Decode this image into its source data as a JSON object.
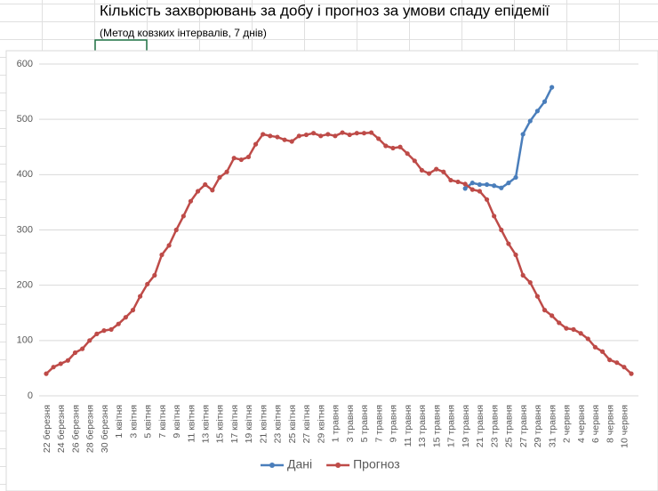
{
  "chart_data": {
    "type": "line",
    "title": "Кількість захворювань за добу і прогноз за умови спаду епідемії",
    "subtitle": "(Метод ковзких інтервалів, 7 днів)",
    "categories": [
      "22 березня",
      null,
      "24 березня",
      null,
      "26 березня",
      null,
      "28 березня",
      null,
      "30 березня",
      null,
      "1 квітня",
      null,
      "3 квітня",
      null,
      "5 квітня",
      null,
      "7 квітня",
      null,
      "9 квітня",
      null,
      "11 квітня",
      null,
      "13 квітня",
      null,
      "15 квітня",
      null,
      "17 квітня",
      null,
      "19 квітня",
      null,
      "21 квітня",
      null,
      "23 квітня",
      null,
      "25 квітня",
      null,
      "27 квітня",
      null,
      "29 квітня",
      null,
      "1 травня",
      null,
      "3 травня",
      null,
      "5 травня",
      null,
      "7 травня",
      null,
      "9 травня",
      null,
      "11 травня",
      null,
      "13 травня",
      null,
      "15 травня",
      null,
      "17 травня",
      null,
      "19 травня",
      null,
      "21 травня",
      null,
      "23 травня",
      null,
      "25 травня",
      null,
      "27 травня",
      null,
      "29 травня",
      null,
      "31 травня",
      null,
      "2 червня",
      null,
      "4 червня",
      null,
      "6 червня",
      null,
      "8 червня",
      null,
      "10 червня",
      null
    ],
    "series": [
      {
        "name": "Дані",
        "color": "#4a7ebb",
        "values": [
          null,
          null,
          null,
          null,
          null,
          null,
          null,
          null,
          null,
          null,
          null,
          null,
          null,
          null,
          null,
          null,
          null,
          null,
          null,
          null,
          null,
          null,
          null,
          null,
          null,
          null,
          null,
          null,
          null,
          null,
          null,
          null,
          null,
          null,
          null,
          null,
          null,
          null,
          null,
          null,
          null,
          null,
          null,
          null,
          null,
          null,
          null,
          null,
          null,
          null,
          null,
          null,
          null,
          null,
          null,
          null,
          null,
          null,
          375,
          385,
          382,
          382,
          380,
          376,
          385,
          395,
          473,
          497,
          515,
          532,
          558,
          null,
          null,
          null,
          null,
          null,
          null,
          null,
          null,
          null,
          null,
          null
        ]
      },
      {
        "name": "Прогноз",
        "color": "#be4b48",
        "values": [
          40,
          52,
          58,
          64,
          78,
          85,
          100,
          112,
          118,
          120,
          130,
          142,
          155,
          180,
          202,
          218,
          255,
          272,
          300,
          325,
          352,
          370,
          382,
          372,
          395,
          405,
          430,
          427,
          432,
          455,
          473,
          470,
          468,
          463,
          460,
          470,
          472,
          475,
          470,
          473,
          470,
          476,
          472,
          475,
          475,
          476,
          465,
          452,
          448,
          450,
          438,
          425,
          408,
          402,
          410,
          405,
          390,
          387,
          383,
          373,
          370,
          355,
          325,
          300,
          275,
          255,
          218,
          205,
          180,
          155,
          145,
          132,
          122,
          120,
          113,
          103,
          88,
          80,
          65,
          60,
          52,
          40
        ]
      }
    ],
    "ylim": [
      0,
      600
    ],
    "yticks": [
      0,
      100,
      200,
      300,
      400,
      500,
      600
    ],
    "grid": true,
    "legend": "bottom"
  }
}
